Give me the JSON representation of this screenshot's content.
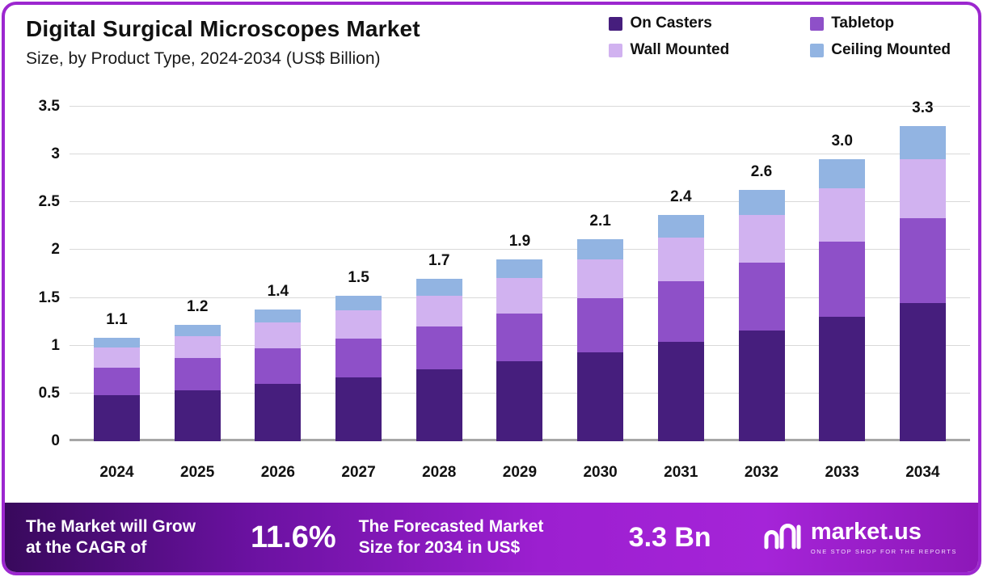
{
  "header": {
    "title": "Digital Surgical Microscopes Market",
    "subtitle": "Size, by Product Type, 2024-2034 (US$ Billion)"
  },
  "chart_data": {
    "type": "bar",
    "stacked": true,
    "title": "Digital Surgical Microscopes Market",
    "subtitle": "Size, by Product Type, 2024-2034 (US$ Billion)",
    "categories": [
      "2024",
      "2025",
      "2026",
      "2027",
      "2028",
      "2029",
      "2030",
      "2031",
      "2032",
      "2033",
      "2034"
    ],
    "series": [
      {
        "name": "On Casters",
        "color": "#461e7d",
        "values": [
          0.48,
          0.53,
          0.6,
          0.67,
          0.75,
          0.84,
          0.93,
          1.04,
          1.16,
          1.3,
          1.45
        ]
      },
      {
        "name": "Tabletop",
        "color": "#8e50c8",
        "values": [
          0.29,
          0.34,
          0.37,
          0.4,
          0.45,
          0.5,
          0.57,
          0.63,
          0.71,
          0.79,
          0.88
        ]
      },
      {
        "name": "Wall Mounted",
        "color": "#d1b2f0",
        "values": [
          0.21,
          0.23,
          0.27,
          0.3,
          0.32,
          0.37,
          0.4,
          0.46,
          0.5,
          0.56,
          0.62
        ]
      },
      {
        "name": "Ceiling Mounted",
        "color": "#92b4e2",
        "values": [
          0.1,
          0.12,
          0.14,
          0.15,
          0.18,
          0.19,
          0.21,
          0.24,
          0.26,
          0.3,
          0.35
        ]
      }
    ],
    "totals": [
      "1.1",
      "1.2",
      "1.4",
      "1.5",
      "1.7",
      "1.9",
      "2.1",
      "2.4",
      "2.6",
      "3.0",
      "3.3"
    ],
    "yticks": [
      0,
      0.5,
      1,
      1.5,
      2,
      2.5,
      3,
      3.5
    ],
    "ylim": [
      0,
      3.5
    ],
    "xlabel": "",
    "ylabel": "",
    "grid": true,
    "legend_position": "top-right"
  },
  "banner": {
    "left_text_line1": "The Market will Grow",
    "left_text_line2": "at the CAGR of",
    "cagr": "11.6%",
    "mid_text_line1": "The Forecasted Market",
    "mid_text_line2": "Size for 2034 in US$",
    "forecast": "3.3 Bn",
    "logo_text": "market.us",
    "logo_tagline": "ONE STOP SHOP FOR THE REPORTS"
  },
  "colors": {
    "frame_border": "#9c27cf",
    "banner_gradient_start": "#38095c",
    "banner_gradient_mid": "#9c1fd0",
    "banner_gradient_end": "#8d18b8",
    "gridline": "#d9d9d9",
    "axis_line": "#a6a6a6"
  }
}
